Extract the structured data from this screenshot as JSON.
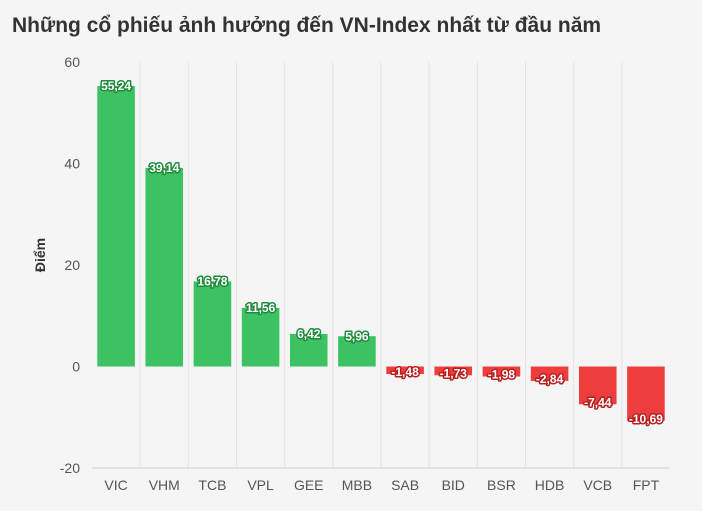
{
  "chart_data": {
    "type": "bar",
    "title": "Những cổ phiếu ảnh hưởng đến VN-Index nhất từ đầu năm",
    "xlabel": "",
    "ylabel": "Điểm",
    "ylim": [
      -20,
      60
    ],
    "yticks": [
      -20,
      0,
      20,
      40,
      60
    ],
    "grid": "vertical",
    "categories": [
      "VIC",
      "VHM",
      "TCB",
      "VPL",
      "GEE",
      "MBB",
      "SAB",
      "BID",
      "BSR",
      "HDB",
      "VCB",
      "FPT"
    ],
    "values": [
      55.24,
      39.14,
      16.78,
      11.56,
      6.42,
      5.96,
      -1.48,
      -1.73,
      -1.98,
      -2.84,
      -7.44,
      -10.69
    ],
    "value_labels": [
      "55,24",
      "39,14",
      "16,78",
      "11,56",
      "6,42",
      "5,96",
      "-1,48",
      "-1,73",
      "-1,98",
      "-2,84",
      "-7,44",
      "-10,69"
    ],
    "colors": {
      "positive": "#3cc262",
      "negative": "#ee3d3d",
      "positive_outline": "#1f8a3c",
      "negative_outline": "#b81f1f"
    }
  }
}
